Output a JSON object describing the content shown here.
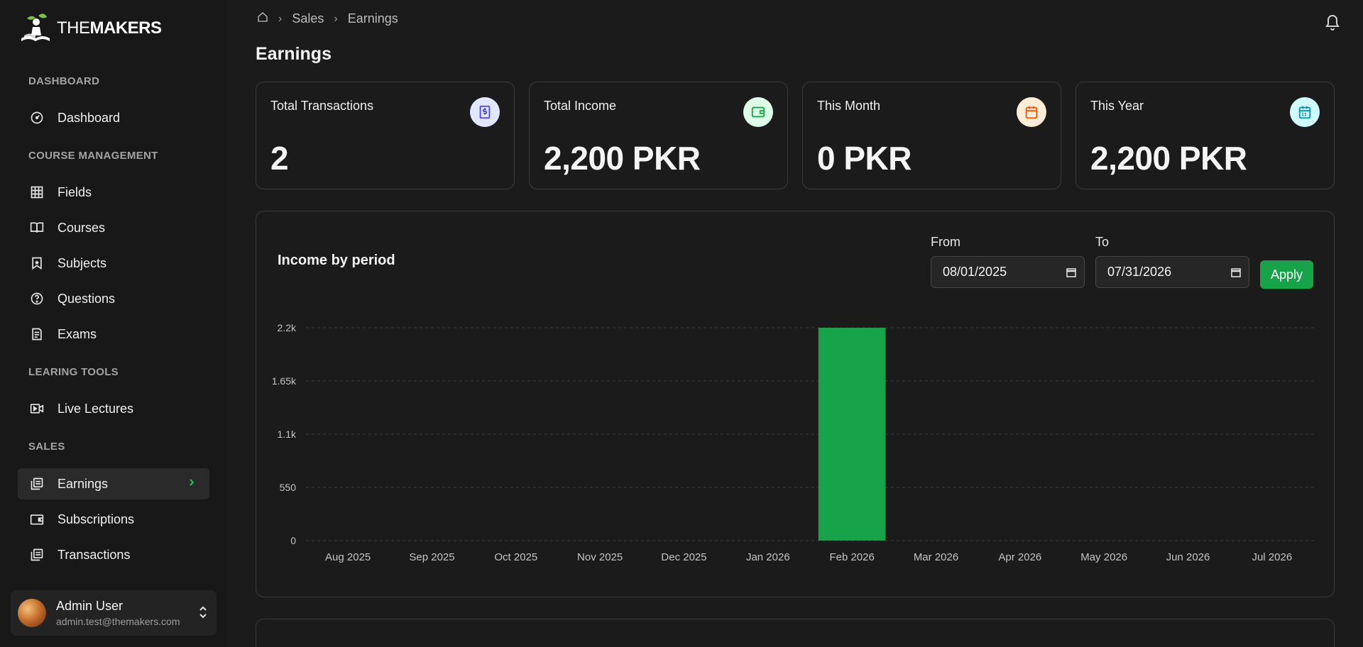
{
  "brand": {
    "prefix": "THE",
    "bold": "MAKERS"
  },
  "sidebar": {
    "sections": [
      {
        "label": "DASHBOARD"
      },
      {
        "label": "COURSE MANAGEMENT"
      },
      {
        "label": "LEARING TOOLS"
      },
      {
        "label": "SALES"
      }
    ],
    "items": [
      {
        "label": "Dashboard",
        "icon": "gauge-icon"
      },
      {
        "label": "Fields",
        "icon": "grid-icon"
      },
      {
        "label": "Courses",
        "icon": "book-open-icon"
      },
      {
        "label": "Subjects",
        "icon": "bookmark-star-icon"
      },
      {
        "label": "Questions",
        "icon": "help-circle-icon"
      },
      {
        "label": "Exams",
        "icon": "document-list-icon"
      },
      {
        "label": "Live Lectures",
        "icon": "video-icon"
      },
      {
        "label": "Earnings",
        "icon": "receipt-stack-icon",
        "active": true
      },
      {
        "label": "Subscriptions",
        "icon": "wallet-icon"
      },
      {
        "label": "Transactions",
        "icon": "receipt-stack-icon"
      }
    ]
  },
  "user": {
    "name": "Admin User",
    "email": "admin.test@themakers.com"
  },
  "breadcrumb": {
    "items": [
      "Sales",
      "Earnings"
    ]
  },
  "page": {
    "title": "Earnings"
  },
  "stats": [
    {
      "label": "Total Transactions",
      "value": "2",
      "icon": "receipt-dollar-icon",
      "icon_color": "#4f46e5",
      "icon_bg": "#e0e7ff"
    },
    {
      "label": "Total Income",
      "value": "2,200 PKR",
      "icon": "wallet-icon",
      "icon_color": "#16a34a",
      "icon_bg": "#dcfce7"
    },
    {
      "label": "This Month",
      "value": "0 PKR",
      "icon": "calendar-icon",
      "icon_color": "#ea580c",
      "icon_bg": "#ffedd5"
    },
    {
      "label": "This Year",
      "value": "2,200 PKR",
      "icon": "calendar-grid-icon",
      "icon_color": "#0891b2",
      "icon_bg": "#cffafe"
    }
  ],
  "filter": {
    "from_label": "From",
    "from_value": "08/01/2025",
    "to_label": "To",
    "to_value": "07/31/2026",
    "apply_label": "Apply"
  },
  "chart_data": {
    "type": "bar",
    "title": "Income by period",
    "categories": [
      "Aug 2025",
      "Sep 2025",
      "Oct 2025",
      "Nov 2025",
      "Dec 2025",
      "Jan 2026",
      "Feb 2026",
      "Mar 2026",
      "Apr 2026",
      "May 2026",
      "Jun 2026",
      "Jul 2026"
    ],
    "values": [
      0,
      0,
      0,
      0,
      0,
      0,
      2200,
      0,
      0,
      0,
      0,
      0
    ],
    "yticks": [
      0,
      550,
      1100,
      1650,
      2200
    ],
    "ytick_labels": [
      "0",
      "550",
      "1.1k",
      "1.65k",
      "2.2k"
    ],
    "ylim": [
      0,
      2200
    ],
    "grid": true,
    "bar_color": "#16a34a",
    "xlabel": "",
    "ylabel": ""
  }
}
